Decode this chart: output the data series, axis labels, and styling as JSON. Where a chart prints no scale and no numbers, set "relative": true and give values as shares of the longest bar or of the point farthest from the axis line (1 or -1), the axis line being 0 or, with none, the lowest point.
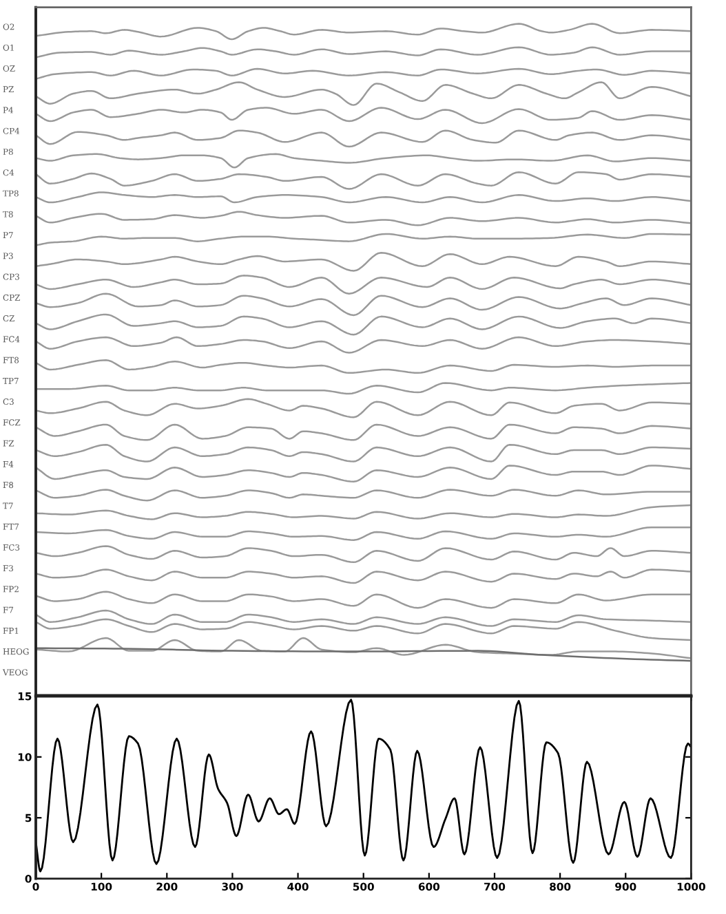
{
  "chart_data": [
    {
      "type": "line",
      "relative": true,
      "xlim": [
        0,
        1000
      ],
      "xticks": [
        0,
        100,
        200,
        300,
        400,
        500,
        600,
        700,
        800,
        900,
        1000
      ],
      "tick_labels": false,
      "series": [
        {
          "name": "O2",
          "color": "#9a9a9a",
          "x": [
            0,
            50,
            85,
            107,
            135,
            156,
            191,
            247,
            275,
            299,
            324,
            348,
            373,
            394,
            436,
            478,
            534,
            583,
            618,
            653,
            681,
            737,
            772,
            786,
            814,
            849,
            891,
            940,
            1000
          ],
          "values": [
            0.982,
            0.988,
            0.989,
            0.986,
            0.991,
            0.988,
            0.981,
            0.994,
            0.989,
            0.977,
            0.989,
            0.994,
            0.989,
            0.984,
            0.991,
            0.987,
            0.989,
            0.984,
            0.993,
            0.989,
            0.987,
            1.0,
            0.989,
            0.987,
            0.991,
            1.0,
            0.986,
            0.991,
            0.989
          ]
        },
        {
          "name": "O1",
          "color": "#9a9a9a",
          "x": [
            0,
            36,
            85,
            114,
            142,
            191,
            226,
            254,
            282,
            299,
            338,
            366,
            394,
            436,
            478,
            534,
            583,
            618,
            674,
            737,
            786,
            821,
            849,
            891,
            940,
            1000
          ],
          "values": [
            0.95,
            0.957,
            0.958,
            0.954,
            0.96,
            0.954,
            0.959,
            0.964,
            0.959,
            0.954,
            0.962,
            0.959,
            0.954,
            0.962,
            0.955,
            0.959,
            0.953,
            0.962,
            0.954,
            0.965,
            0.954,
            0.957,
            0.965,
            0.954,
            0.959,
            0.959
          ]
        },
        {
          "name": "OZ",
          "color": "#9a9a9a",
          "x": [
            0,
            29,
            85,
            114,
            149,
            191,
            240,
            275,
            299,
            338,
            380,
            422,
            478,
            534,
            583,
            618,
            674,
            737,
            786,
            828,
            856,
            898,
            940,
            1000
          ],
          "values": [
            0.918,
            0.925,
            0.928,
            0.923,
            0.93,
            0.923,
            0.932,
            0.93,
            0.923,
            0.933,
            0.926,
            0.93,
            0.923,
            0.928,
            0.923,
            0.932,
            0.926,
            0.933,
            0.925,
            0.93,
            0.932,
            0.924,
            0.93,
            0.926
          ]
        },
        {
          "name": "PZ",
          "color": "#9a9a9a",
          "x": [
            0,
            22,
            57,
            85,
            114,
            156,
            212,
            247,
            275,
            310,
            338,
            380,
            436,
            457,
            485,
            520,
            555,
            590,
            625,
            667,
            695,
            737,
            779,
            807,
            828,
            863,
            891,
            940,
            1000
          ],
          "values": [
            0.892,
            0.881,
            0.896,
            0.9,
            0.889,
            0.896,
            0.902,
            0.896,
            0.902,
            0.913,
            0.902,
            0.891,
            0.902,
            0.896,
            0.879,
            0.911,
            0.898,
            0.885,
            0.909,
            0.896,
            0.889,
            0.909,
            0.896,
            0.889,
            0.898,
            0.913,
            0.889,
            0.906,
            0.892
          ]
        },
        {
          "name": "P4",
          "color": "#9a9a9a",
          "x": [
            0,
            22,
            57,
            85,
            114,
            156,
            191,
            226,
            254,
            282,
            299,
            324,
            352,
            394,
            436,
            478,
            527,
            583,
            625,
            681,
            737,
            786,
            828,
            849,
            891,
            940,
            1000
          ],
          "values": [
            0.866,
            0.855,
            0.868,
            0.872,
            0.861,
            0.866,
            0.872,
            0.868,
            0.872,
            0.868,
            0.857,
            0.872,
            0.875,
            0.866,
            0.872,
            0.855,
            0.875,
            0.858,
            0.872,
            0.852,
            0.873,
            0.857,
            0.86,
            0.87,
            0.857,
            0.864,
            0.857
          ]
        },
        {
          "name": "CP4",
          "color": "#9a9a9a",
          "x": [
            0,
            22,
            64,
            107,
            135,
            156,
            191,
            212,
            247,
            282,
            310,
            338,
            380,
            436,
            478,
            527,
            590,
            625,
            667,
            702,
            737,
            793,
            814,
            849,
            891,
            940,
            1000
          ],
          "values": [
            0.834,
            0.821,
            0.839,
            0.834,
            0.827,
            0.83,
            0.834,
            0.838,
            0.827,
            0.83,
            0.841,
            0.838,
            0.824,
            0.838,
            0.817,
            0.838,
            0.824,
            0.841,
            0.827,
            0.823,
            0.841,
            0.827,
            0.834,
            0.838,
            0.827,
            0.834,
            0.827
          ]
        },
        {
          "name": "P8",
          "color": "#9a9a9a",
          "x": [
            0,
            22,
            57,
            93,
            128,
            156,
            191,
            226,
            254,
            282,
            303,
            324,
            366,
            394,
            436,
            478,
            534,
            597,
            632,
            674,
            730,
            786,
            842,
            884,
            940,
            1000
          ],
          "values": [
            0.8,
            0.796,
            0.804,
            0.806,
            0.8,
            0.798,
            0.8,
            0.804,
            0.804,
            0.8,
            0.786,
            0.8,
            0.806,
            0.8,
            0.796,
            0.793,
            0.8,
            0.804,
            0.8,
            0.796,
            0.798,
            0.796,
            0.804,
            0.795,
            0.8,
            0.796
          ]
        },
        {
          "name": "C4",
          "color": "#9a9a9a",
          "x": [
            0,
            22,
            57,
            85,
            114,
            135,
            177,
            212,
            247,
            282,
            310,
            352,
            380,
            436,
            478,
            527,
            583,
            625,
            674,
            695,
            737,
            793,
            828,
            870,
            891,
            940,
            1000
          ],
          "values": [
            0.776,
            0.762,
            0.769,
            0.777,
            0.769,
            0.759,
            0.766,
            0.776,
            0.766,
            0.769,
            0.776,
            0.772,
            0.766,
            0.772,
            0.754,
            0.776,
            0.759,
            0.776,
            0.762,
            0.759,
            0.779,
            0.762,
            0.779,
            0.776,
            0.768,
            0.776,
            0.772
          ]
        },
        {
          "name": "TP8",
          "color": "#9a9a9a",
          "x": [
            0,
            22,
            64,
            100,
            135,
            177,
            212,
            247,
            282,
            303,
            338,
            380,
            436,
            478,
            534,
            590,
            632,
            681,
            737,
            793,
            842,
            884,
            940,
            1000
          ],
          "values": [
            0.742,
            0.734,
            0.742,
            0.749,
            0.745,
            0.742,
            0.745,
            0.742,
            0.743,
            0.734,
            0.742,
            0.745,
            0.742,
            0.734,
            0.742,
            0.734,
            0.742,
            0.734,
            0.745,
            0.736,
            0.74,
            0.736,
            0.742,
            0.736
          ]
        },
        {
          "name": "T8",
          "color": "#9a9a9a",
          "x": [
            0,
            22,
            57,
            100,
            135,
            177,
            212,
            254,
            282,
            310,
            338,
            380,
            436,
            478,
            534,
            583,
            632,
            681,
            737,
            793,
            842,
            884,
            940,
            1000
          ],
          "values": [
            0.714,
            0.704,
            0.711,
            0.717,
            0.708,
            0.709,
            0.715,
            0.711,
            0.714,
            0.72,
            0.715,
            0.711,
            0.714,
            0.704,
            0.708,
            0.7,
            0.711,
            0.706,
            0.711,
            0.704,
            0.709,
            0.704,
            0.708,
            0.703
          ]
        },
        {
          "name": "P7",
          "color": "#9a9a9a",
          "x": [
            0,
            22,
            57,
            100,
            135,
            170,
            212,
            247,
            282,
            317,
            352,
            394,
            436,
            478,
            534,
            590,
            632,
            674,
            730,
            786,
            842,
            898,
            940,
            1000
          ],
          "values": [
            0.67,
            0.674,
            0.676,
            0.683,
            0.68,
            0.681,
            0.681,
            0.676,
            0.68,
            0.683,
            0.683,
            0.68,
            0.678,
            0.676,
            0.687,
            0.68,
            0.683,
            0.68,
            0.68,
            0.681,
            0.686,
            0.681,
            0.687,
            0.686
          ]
        },
        {
          "name": "P3",
          "color": "#9a9a9a",
          "x": [
            0,
            22,
            64,
            107,
            135,
            191,
            212,
            247,
            282,
            310,
            338,
            380,
            436,
            485,
            527,
            590,
            632,
            681,
            723,
            793,
            828,
            870,
            891,
            940,
            1000
          ],
          "values": [
            0.639,
            0.642,
            0.649,
            0.646,
            0.642,
            0.649,
            0.653,
            0.646,
            0.642,
            0.649,
            0.654,
            0.646,
            0.649,
            0.632,
            0.659,
            0.639,
            0.657,
            0.642,
            0.653,
            0.639,
            0.653,
            0.646,
            0.639,
            0.646,
            0.642
          ]
        },
        {
          "name": "CP3",
          "color": "#9a9a9a",
          "x": [
            0,
            22,
            64,
            107,
            149,
            191,
            212,
            247,
            282,
            317,
            345,
            387,
            436,
            478,
            527,
            597,
            632,
            681,
            730,
            800,
            821,
            863,
            891,
            940,
            1000
          ],
          "values": [
            0.612,
            0.605,
            0.612,
            0.619,
            0.608,
            0.615,
            0.619,
            0.612,
            0.613,
            0.625,
            0.622,
            0.608,
            0.622,
            0.598,
            0.622,
            0.608,
            0.622,
            0.605,
            0.622,
            0.606,
            0.612,
            0.619,
            0.612,
            0.619,
            0.612
          ]
        },
        {
          "name": "CPZ",
          "color": "#9a9a9a",
          "x": [
            0,
            22,
            64,
            107,
            156,
            191,
            212,
            247,
            282,
            317,
            345,
            387,
            436,
            485,
            527,
            590,
            632,
            681,
            737,
            800,
            835,
            870,
            898,
            940,
            1000
          ],
          "values": [
            0.584,
            0.578,
            0.584,
            0.598,
            0.579,
            0.581,
            0.588,
            0.579,
            0.581,
            0.595,
            0.591,
            0.579,
            0.59,
            0.566,
            0.595,
            0.578,
            0.591,
            0.574,
            0.593,
            0.576,
            0.584,
            0.591,
            0.581,
            0.591,
            0.581
          ]
        },
        {
          "name": "CZ",
          "color": "#9a9a9a",
          "x": [
            0,
            22,
            64,
            107,
            149,
            191,
            212,
            247,
            282,
            317,
            345,
            387,
            436,
            485,
            527,
            590,
            632,
            681,
            737,
            800,
            842,
            884,
            912,
            940,
            1000
          ],
          "values": [
            0.554,
            0.545,
            0.557,
            0.567,
            0.55,
            0.554,
            0.557,
            0.548,
            0.55,
            0.564,
            0.561,
            0.548,
            0.557,
            0.537,
            0.564,
            0.548,
            0.561,
            0.545,
            0.564,
            0.547,
            0.557,
            0.561,
            0.554,
            0.561,
            0.554
          ]
        },
        {
          "name": "FC4",
          "color": "#9a9a9a",
          "x": [
            0,
            22,
            64,
            107,
            149,
            191,
            215,
            247,
            282,
            317,
            345,
            387,
            436,
            478,
            527,
            590,
            632,
            681,
            737,
            793,
            842,
            884,
            940,
            1000
          ],
          "values": [
            0.527,
            0.516,
            0.527,
            0.533,
            0.52,
            0.525,
            0.533,
            0.52,
            0.523,
            0.529,
            0.527,
            0.517,
            0.527,
            0.51,
            0.529,
            0.52,
            0.529,
            0.516,
            0.533,
            0.52,
            0.527,
            0.529,
            0.527,
            0.523
          ]
        },
        {
          "name": "FT8",
          "color": "#9a9a9a",
          "x": [
            0,
            22,
            64,
            107,
            142,
            177,
            212,
            254,
            282,
            317,
            352,
            387,
            436,
            478,
            534,
            583,
            632,
            695,
            730,
            793,
            842,
            884,
            940,
            1000
          ],
          "values": [
            0.495,
            0.485,
            0.492,
            0.499,
            0.485,
            0.489,
            0.497,
            0.488,
            0.492,
            0.495,
            0.491,
            0.488,
            0.491,
            0.48,
            0.485,
            0.48,
            0.491,
            0.483,
            0.492,
            0.489,
            0.491,
            0.489,
            0.491,
            0.491
          ]
        },
        {
          "name": "TP7",
          "color": "#9a9a9a",
          "x": [
            0,
            50,
            107,
            142,
            177,
            212,
            247,
            282,
            317,
            352,
            394,
            436,
            478,
            520,
            583,
            625,
            695,
            723,
            793,
            842,
            891,
            940,
            1000
          ],
          "values": [
            0.456,
            0.456,
            0.461,
            0.454,
            0.454,
            0.458,
            0.454,
            0.454,
            0.458,
            0.454,
            0.454,
            0.454,
            0.449,
            0.461,
            0.451,
            0.465,
            0.454,
            0.458,
            0.454,
            0.458,
            0.461,
            0.463,
            0.465
          ]
        },
        {
          "name": "C3",
          "color": "#9a9a9a",
          "x": [
            0,
            22,
            64,
            107,
            135,
            170,
            212,
            247,
            282,
            324,
            352,
            387,
            408,
            436,
            485,
            520,
            583,
            632,
            695,
            723,
            793,
            821,
            863,
            891,
            940,
            1000
          ],
          "values": [
            0.424,
            0.42,
            0.427,
            0.437,
            0.424,
            0.417,
            0.434,
            0.427,
            0.431,
            0.441,
            0.434,
            0.424,
            0.431,
            0.427,
            0.414,
            0.437,
            0.417,
            0.437,
            0.417,
            0.436,
            0.42,
            0.431,
            0.434,
            0.424,
            0.436,
            0.434
          ]
        },
        {
          "name": "FCZ",
          "color": "#9a9a9a",
          "x": [
            0,
            29,
            64,
            107,
            135,
            170,
            212,
            254,
            289,
            324,
            359,
            387,
            408,
            436,
            485,
            520,
            583,
            632,
            695,
            723,
            793,
            821,
            863,
            891,
            940,
            1000
          ],
          "values": [
            0.399,
            0.386,
            0.393,
            0.403,
            0.386,
            0.38,
            0.403,
            0.382,
            0.386,
            0.399,
            0.397,
            0.382,
            0.393,
            0.39,
            0.38,
            0.403,
            0.386,
            0.399,
            0.382,
            0.403,
            0.39,
            0.399,
            0.397,
            0.39,
            0.401,
            0.397
          ]
        },
        {
          "name": "FZ",
          "color": "#9a9a9a",
          "x": [
            0,
            29,
            64,
            107,
            135,
            170,
            212,
            254,
            289,
            324,
            359,
            387,
            408,
            436,
            485,
            520,
            583,
            632,
            695,
            723,
            793,
            821,
            863,
            891,
            940,
            1000
          ],
          "values": [
            0.365,
            0.356,
            0.362,
            0.373,
            0.356,
            0.348,
            0.369,
            0.356,
            0.359,
            0.369,
            0.365,
            0.356,
            0.362,
            0.359,
            0.348,
            0.369,
            0.356,
            0.369,
            0.348,
            0.373,
            0.359,
            0.365,
            0.365,
            0.359,
            0.369,
            0.367
          ]
        },
        {
          "name": "F4",
          "color": "#9a9a9a",
          "x": [
            0,
            29,
            64,
            107,
            135,
            170,
            212,
            254,
            289,
            324,
            359,
            387,
            408,
            436,
            485,
            520,
            583,
            632,
            695,
            723,
            793,
            821,
            863,
            891,
            940,
            1000
          ],
          "values": [
            0.339,
            0.322,
            0.328,
            0.335,
            0.325,
            0.322,
            0.339,
            0.325,
            0.328,
            0.335,
            0.331,
            0.325,
            0.331,
            0.328,
            0.318,
            0.335,
            0.325,
            0.339,
            0.322,
            0.342,
            0.328,
            0.333,
            0.333,
            0.328,
            0.342,
            0.337
          ]
        },
        {
          "name": "F8",
          "color": "#9a9a9a",
          "x": [
            0,
            29,
            64,
            107,
            135,
            170,
            212,
            254,
            289,
            324,
            359,
            387,
            408,
            436,
            485,
            520,
            583,
            632,
            695,
            730,
            793,
            828,
            870,
            940,
            1000
          ],
          "values": [
            0.305,
            0.294,
            0.297,
            0.306,
            0.297,
            0.29,
            0.305,
            0.294,
            0.297,
            0.305,
            0.301,
            0.294,
            0.299,
            0.297,
            0.294,
            0.305,
            0.294,
            0.306,
            0.297,
            0.306,
            0.297,
            0.305,
            0.299,
            0.303,
            0.303
          ]
        },
        {
          "name": "T7",
          "color": "#9a9a9a",
          "x": [
            0,
            50,
            107,
            142,
            177,
            212,
            254,
            289,
            324,
            359,
            394,
            436,
            485,
            520,
            583,
            632,
            695,
            730,
            793,
            828,
            870,
            940,
            1000
          ],
          "values": [
            0.271,
            0.269,
            0.275,
            0.267,
            0.262,
            0.271,
            0.265,
            0.267,
            0.273,
            0.27,
            0.265,
            0.267,
            0.263,
            0.273,
            0.263,
            0.271,
            0.265,
            0.27,
            0.265,
            0.269,
            0.267,
            0.28,
            0.283
          ]
        },
        {
          "name": "FT7",
          "color": "#9a9a9a",
          "x": [
            0,
            50,
            107,
            142,
            177,
            212,
            254,
            289,
            324,
            359,
            394,
            436,
            485,
            520,
            583,
            625,
            695,
            730,
            793,
            828,
            870,
            940,
            1000
          ],
          "values": [
            0.243,
            0.241,
            0.246,
            0.237,
            0.233,
            0.243,
            0.236,
            0.236,
            0.244,
            0.241,
            0.236,
            0.237,
            0.231,
            0.243,
            0.233,
            0.244,
            0.233,
            0.241,
            0.236,
            0.239,
            0.236,
            0.25,
            0.25
          ]
        },
        {
          "name": "FC3",
          "color": "#9a9a9a",
          "x": [
            0,
            29,
            64,
            107,
            142,
            177,
            212,
            254,
            289,
            324,
            359,
            394,
            436,
            485,
            520,
            583,
            625,
            695,
            730,
            793,
            821,
            856,
            877,
            898,
            940,
            1000
          ],
          "values": [
            0.212,
            0.207,
            0.212,
            0.222,
            0.209,
            0.203,
            0.215,
            0.205,
            0.207,
            0.219,
            0.215,
            0.207,
            0.209,
            0.198,
            0.215,
            0.2,
            0.219,
            0.202,
            0.214,
            0.202,
            0.212,
            0.207,
            0.219,
            0.207,
            0.215,
            0.212
          ]
        },
        {
          "name": "F3",
          "color": "#9a9a9a",
          "x": [
            0,
            29,
            64,
            107,
            142,
            177,
            212,
            254,
            289,
            324,
            359,
            394,
            436,
            485,
            520,
            583,
            625,
            695,
            730,
            793,
            821,
            856,
            877,
            898,
            940,
            1000
          ],
          "values": [
            0.181,
            0.175,
            0.177,
            0.187,
            0.177,
            0.171,
            0.184,
            0.175,
            0.175,
            0.184,
            0.181,
            0.175,
            0.177,
            0.167,
            0.184,
            0.171,
            0.184,
            0.169,
            0.181,
            0.173,
            0.181,
            0.177,
            0.184,
            0.175,
            0.187,
            0.184
          ]
        },
        {
          "name": "FP2",
          "color": "#9a9a9a",
          "x": [
            0,
            29,
            64,
            107,
            142,
            177,
            212,
            254,
            289,
            324,
            359,
            394,
            436,
            485,
            520,
            583,
            625,
            695,
            730,
            793,
            828,
            870,
            940,
            1000
          ],
          "values": [
            0.148,
            0.14,
            0.143,
            0.154,
            0.143,
            0.137,
            0.15,
            0.14,
            0.14,
            0.15,
            0.147,
            0.14,
            0.143,
            0.133,
            0.15,
            0.13,
            0.143,
            0.13,
            0.143,
            0.137,
            0.15,
            0.141,
            0.15,
            0.15
          ]
        },
        {
          "name": "F7",
          "color": "#9a9a9a",
          "x": [
            0,
            22,
            64,
            107,
            142,
            177,
            212,
            254,
            289,
            324,
            359,
            394,
            436,
            485,
            520,
            583,
            625,
            695,
            730,
            793,
            828,
            870,
            940,
            1000
          ],
          "values": [
            0.12,
            0.109,
            0.116,
            0.126,
            0.113,
            0.106,
            0.12,
            0.109,
            0.109,
            0.12,
            0.116,
            0.109,
            0.113,
            0.106,
            0.116,
            0.106,
            0.116,
            0.103,
            0.113,
            0.109,
            0.119,
            0.113,
            0.111,
            0.109
          ]
        },
        {
          "name": "FP1",
          "color": "#9a9a9a",
          "x": [
            0,
            22,
            64,
            107,
            142,
            177,
            212,
            254,
            289,
            324,
            359,
            394,
            436,
            485,
            520,
            583,
            625,
            695,
            730,
            793,
            828,
            884,
            940,
            1000
          ],
          "values": [
            0.109,
            0.099,
            0.104,
            0.113,
            0.103,
            0.094,
            0.106,
            0.098,
            0.099,
            0.109,
            0.104,
            0.098,
            0.103,
            0.096,
            0.103,
            0.092,
            0.106,
            0.092,
            0.103,
            0.099,
            0.109,
            0.096,
            0.085,
            0.082
          ]
        },
        {
          "name": "HEOG",
          "color": "#9a9a9a",
          "x": [
            0,
            50,
            107,
            142,
            177,
            212,
            247,
            282,
            310,
            345,
            380,
            408,
            436,
            485,
            520,
            562,
            625,
            674,
            723,
            786,
            828,
            884,
            940,
            1000
          ],
          "values": [
            0.068,
            0.065,
            0.085,
            0.066,
            0.066,
            0.082,
            0.066,
            0.065,
            0.082,
            0.066,
            0.065,
            0.085,
            0.068,
            0.064,
            0.07,
            0.06,
            0.075,
            0.064,
            0.062,
            0.06,
            0.065,
            0.065,
            0.062,
            0.055
          ]
        },
        {
          "name": "VEOG",
          "color": "#6e6e6e",
          "x": [
            0,
            149,
            299,
            485,
            674,
            772,
            877,
            1000
          ],
          "values": [
            0.07,
            0.069,
            0.066,
            0.065,
            0.066,
            0.06,
            0.055,
            0.051
          ]
        }
      ]
    },
    {
      "type": "line",
      "xlim": [
        0,
        1000
      ],
      "xticks": [
        0,
        100,
        200,
        300,
        400,
        500,
        600,
        700,
        800,
        900,
        1000
      ],
      "ylim": [
        0,
        15
      ],
      "yticks": [
        0,
        5,
        10,
        15
      ],
      "series": [
        {
          "color": "#000000",
          "x": [
            0,
            7,
            33,
            57,
            94,
            117,
            142,
            156,
            184,
            215,
            243,
            264,
            278,
            292,
            306,
            324,
            340,
            357,
            371,
            383,
            395,
            420,
            443,
            481,
            502,
            523,
            541,
            561,
            582,
            607,
            625,
            639,
            654,
            678,
            704,
            737,
            758,
            779,
            797,
            820,
            841,
            874,
            898,
            918,
            938,
            969,
            995,
            1000
          ],
          "values": [
            3.0,
            0.6,
            11.5,
            3.0,
            14.3,
            1.5,
            11.7,
            11.1,
            1.2,
            11.5,
            2.6,
            10.2,
            7.4,
            6.2,
            3.5,
            6.9,
            4.7,
            6.6,
            5.3,
            5.7,
            4.5,
            12.1,
            4.3,
            14.7,
            1.9,
            11.5,
            10.6,
            1.5,
            10.5,
            2.6,
            4.9,
            6.6,
            2.0,
            10.8,
            1.7,
            14.6,
            2.1,
            11.2,
            10.3,
            1.3,
            9.6,
            2.0,
            6.3,
            1.8,
            6.6,
            1.7,
            11.1,
            10.8
          ]
        }
      ]
    }
  ]
}
